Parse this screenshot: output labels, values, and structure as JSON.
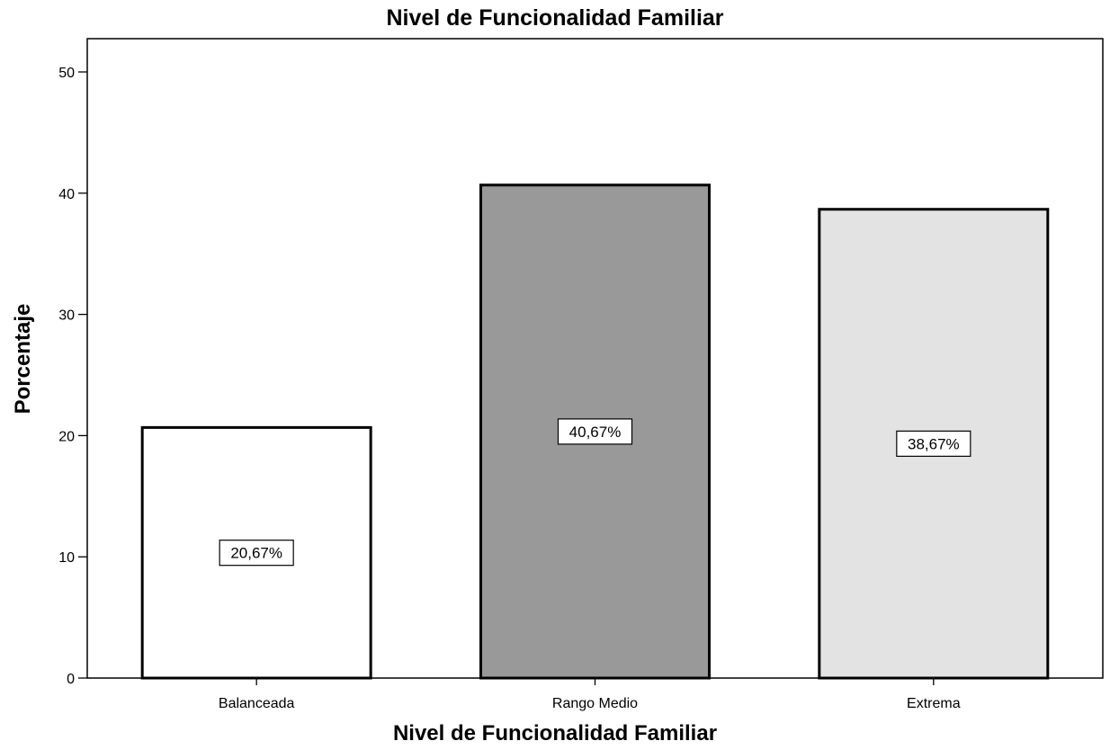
{
  "chart_data": {
    "type": "bar",
    "title": "Nivel de Funcionalidad Familiar",
    "xlabel": "Nivel de Funcionalidad Familiar",
    "ylabel": "Porcentaje",
    "ylim": [
      0,
      52
    ],
    "yticks": [
      0,
      10,
      20,
      30,
      40,
      50
    ],
    "categories": [
      "Balanceada",
      "Rango Medio",
      "Extrema"
    ],
    "values": [
      20.67,
      40.67,
      38.67
    ],
    "data_labels": [
      "20,67%",
      "40,67%",
      "38,67%"
    ],
    "bar_colors": [
      "#ffffff",
      "#999999",
      "#e3e3e3"
    ],
    "grid": false,
    "legend": "none"
  }
}
